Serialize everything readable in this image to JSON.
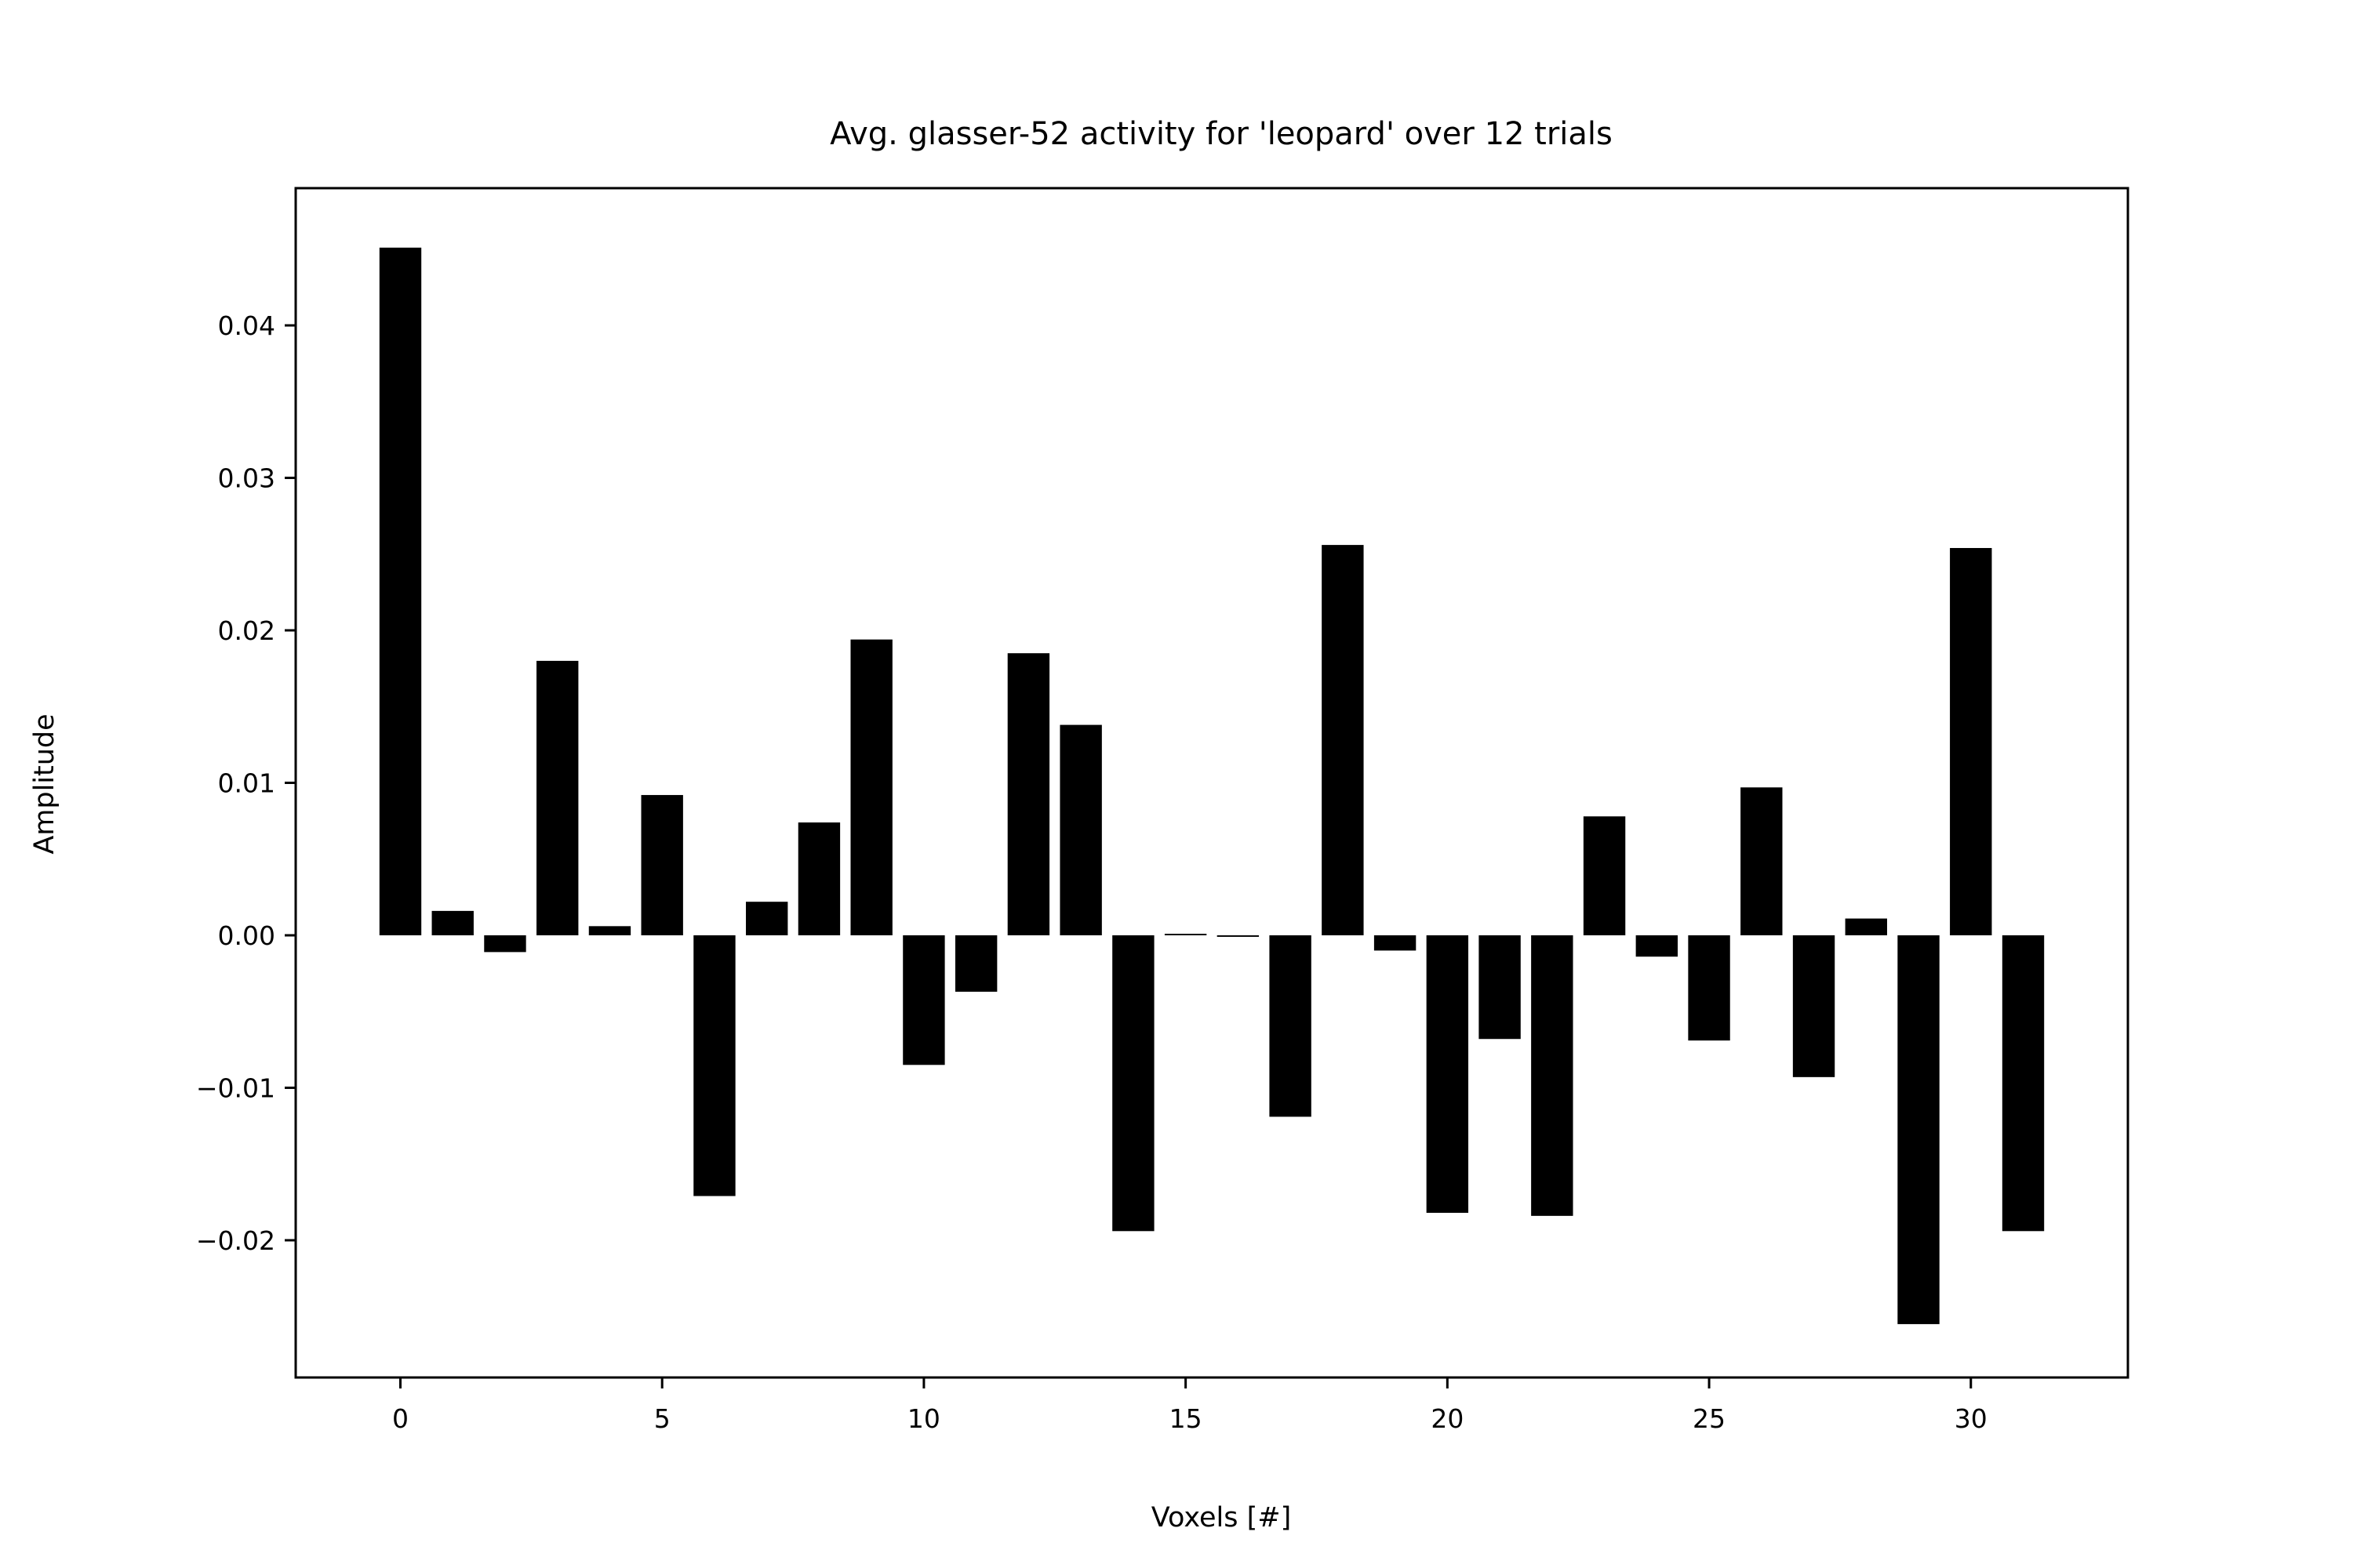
{
  "chart_data": {
    "type": "bar",
    "title": "Avg. glasser-52 activity for 'leopard' over 12 trials",
    "xlabel": "Voxels [#]",
    "ylabel": "Amplitude",
    "x": [
      0,
      1,
      2,
      3,
      4,
      5,
      6,
      7,
      8,
      9,
      10,
      11,
      12,
      13,
      14,
      15,
      16,
      17,
      18,
      19,
      20,
      21,
      22,
      23,
      24,
      25,
      26,
      27,
      28,
      29,
      30,
      31
    ],
    "values": [
      0.0451,
      0.0016,
      -0.0011,
      0.018,
      0.0006,
      0.0092,
      -0.0171,
      0.0022,
      0.0074,
      0.0194,
      -0.0085,
      -0.0037,
      0.0185,
      0.0138,
      -0.0194,
      0.0001,
      -0.0001,
      -0.0119,
      0.0256,
      -0.001,
      -0.0182,
      -0.0068,
      -0.0184,
      0.0078,
      -0.0014,
      -0.0069,
      0.0097,
      -0.0093,
      0.0011,
      -0.0255,
      0.0254,
      -0.0194
    ],
    "xlim": [
      -2,
      33
    ],
    "ylim": [
      -0.029,
      0.049
    ],
    "xticks": [
      0,
      5,
      10,
      15,
      20,
      25,
      30
    ],
    "xtick_labels": [
      "0",
      "5",
      "10",
      "15",
      "20",
      "25",
      "30"
    ],
    "yticks": [
      -0.02,
      -0.01,
      0.0,
      0.01,
      0.02,
      0.03,
      0.04
    ],
    "ytick_labels": [
      "−0.02",
      "−0.01",
      "0.00",
      "0.01",
      "0.02",
      "0.03",
      "0.04"
    ],
    "bar_color": "#000000",
    "grid": false,
    "legend": "none"
  }
}
